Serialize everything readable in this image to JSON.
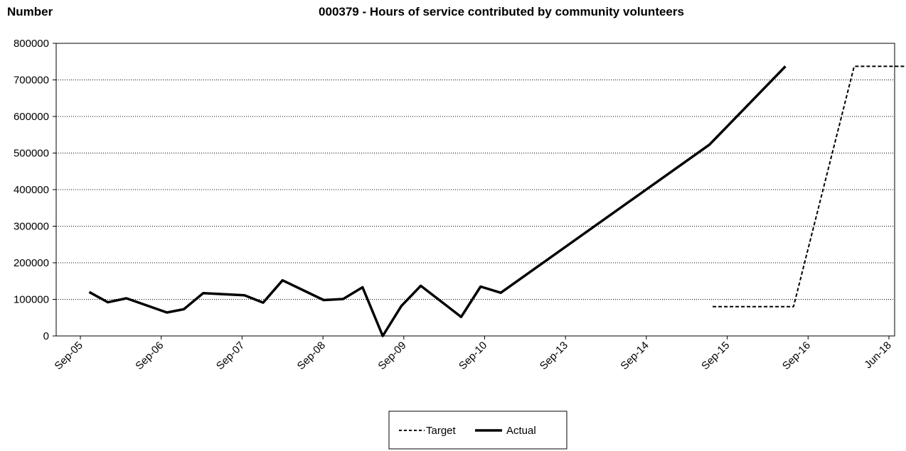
{
  "chart_data": {
    "type": "line",
    "title": "000379 - Hours of service contributed by community volunteers",
    "ylabel": "Number",
    "xlabel": "",
    "ylim": [
      0,
      800000
    ],
    "yticks": [
      "0",
      "100000",
      "200000",
      "300000",
      "400000",
      "500000",
      "600000",
      "700000",
      "800000"
    ],
    "grid": true,
    "x_tick_labels": [
      "Sep-05",
      "Sep-06",
      "Sep-07",
      "Sep-08",
      "Sep-09",
      "Sep-10",
      "Sep-13",
      "Sep-14",
      "Sep-15",
      "Sep-16",
      "Jun-18"
    ],
    "legend_position": "bottom",
    "series": [
      {
        "name": "Target",
        "style": "dashed",
        "points": [
          {
            "x": 7.82,
            "y": 80000
          },
          {
            "x": 8.82,
            "y": 80000
          },
          {
            "x": 9.57,
            "y": 737000
          },
          {
            "x": 10.4,
            "y": 737000
          }
        ]
      },
      {
        "name": "Actual",
        "style": "solid",
        "points": [
          {
            "x": 0.11,
            "y": 120000
          },
          {
            "x": 0.34,
            "y": 92000
          },
          {
            "x": 0.57,
            "y": 103000
          },
          {
            "x": 1.07,
            "y": 64000
          },
          {
            "x": 1.28,
            "y": 73000
          },
          {
            "x": 1.52,
            "y": 117000
          },
          {
            "x": 2.03,
            "y": 111000
          },
          {
            "x": 2.26,
            "y": 91000
          },
          {
            "x": 2.5,
            "y": 152000
          },
          {
            "x": 3.01,
            "y": 98000
          },
          {
            "x": 3.25,
            "y": 101000
          },
          {
            "x": 3.49,
            "y": 133000
          },
          {
            "x": 3.74,
            "y": 0
          },
          {
            "x": 3.97,
            "y": 82000
          },
          {
            "x": 4.21,
            "y": 137000
          },
          {
            "x": 4.71,
            "y": 52000
          },
          {
            "x": 4.95,
            "y": 135000
          },
          {
            "x": 5.2,
            "y": 118000
          },
          {
            "x": 7.78,
            "y": 523000
          },
          {
            "x": 8.72,
            "y": 737000
          }
        ]
      }
    ]
  }
}
